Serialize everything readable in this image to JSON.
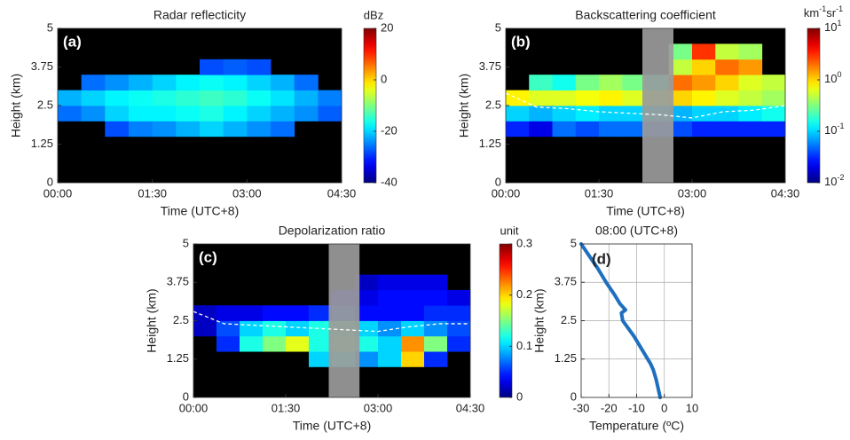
{
  "chart_data": [
    {
      "type": "heatmap",
      "title": "Radar reflecticity",
      "panel_label": "(a)",
      "xlabel": "Time (UTC+8)",
      "ylabel": "Height (km)",
      "xlim": [
        0,
        4.5
      ],
      "xticks": [
        {
          "value": 0,
          "label": "00:00"
        },
        {
          "value": 1.5,
          "label": "01:30"
        },
        {
          "value": 3,
          "label": "03:00"
        },
        {
          "value": 4.5,
          "label": "04:30"
        }
      ],
      "ylim": [
        0,
        5
      ],
      "yticks": [
        0,
        1.25,
        2.5,
        3.75,
        5
      ],
      "x": [
        0,
        0.375,
        0.75,
        1.125,
        1.5,
        1.875,
        2.25,
        2.625,
        3,
        3.375,
        3.75,
        4.125,
        4.5
      ],
      "y": [
        0,
        0.5,
        1,
        1.5,
        2,
        2.5,
        3,
        3.5,
        4,
        4.5,
        5
      ],
      "z": [
        [
          null,
          null,
          null,
          null,
          null,
          null,
          null,
          null,
          null,
          null,
          null,
          null
        ],
        [
          null,
          null,
          null,
          null,
          null,
          null,
          null,
          null,
          null,
          null,
          null,
          null
        ],
        [
          null,
          null,
          null,
          null,
          null,
          null,
          null,
          null,
          null,
          null,
          null,
          null
        ],
        [
          null,
          null,
          -28,
          -25,
          -24,
          -22,
          -20,
          -22,
          -24,
          -26,
          null,
          null
        ],
        [
          -26,
          -24,
          -20,
          -18,
          -18,
          -17,
          -16,
          -18,
          -20,
          -22,
          -24,
          -27
        ],
        [
          -22,
          -20,
          -18,
          -17,
          -16,
          -15,
          -14,
          -15,
          -17,
          -19,
          -22,
          -25
        ],
        [
          null,
          -26,
          -24,
          -22,
          -20,
          -18,
          -17,
          -18,
          -20,
          -22,
          -26,
          null
        ],
        [
          null,
          null,
          null,
          null,
          null,
          null,
          -28,
          -27,
          -28,
          null,
          null,
          null
        ],
        [
          null,
          null,
          null,
          null,
          null,
          null,
          null,
          null,
          null,
          null,
          null,
          null
        ],
        [
          null,
          null,
          null,
          null,
          null,
          null,
          null,
          null,
          null,
          null,
          null,
          null
        ]
      ],
      "colorbar": {
        "label": [
          "dBz"
        ],
        "lim": [
          -40,
          20
        ],
        "ticks": [
          -40,
          -20,
          0,
          20
        ],
        "log": false
      }
    },
    {
      "type": "heatmap",
      "title": "Backscattering coefficient",
      "panel_label": "(b)",
      "xlabel": "Time (UTC+8)",
      "ylabel": "Height (km)",
      "xlim": [
        0,
        4.5
      ],
      "xticks": [
        {
          "value": 0,
          "label": "00:00"
        },
        {
          "value": 1.5,
          "label": "01:30"
        },
        {
          "value": 3,
          "label": "03:00"
        },
        {
          "value": 4.5,
          "label": "04:30"
        }
      ],
      "ylim": [
        0,
        5
      ],
      "yticks": [
        0,
        1.25,
        2.5,
        3.75,
        5
      ],
      "x": [
        0,
        0.375,
        0.75,
        1.125,
        1.5,
        1.875,
        2.25,
        2.625,
        3,
        3.375,
        3.75,
        4.125,
        4.5
      ],
      "y": [
        0,
        0.5,
        1,
        1.5,
        2,
        2.5,
        3,
        3.5,
        4,
        4.5,
        5
      ],
      "z": [
        [
          null,
          null,
          null,
          null,
          null,
          null,
          null,
          null,
          null,
          null,
          null,
          null
        ],
        [
          null,
          null,
          null,
          null,
          null,
          null,
          null,
          null,
          null,
          null,
          null,
          null
        ],
        [
          null,
          null,
          null,
          null,
          null,
          null,
          null,
          null,
          null,
          null,
          null,
          null
        ],
        [
          0.03,
          0.02,
          0.05,
          0.04,
          0.05,
          0.05,
          0.04,
          0.04,
          0.03,
          0.03,
          0.03,
          0.03
        ],
        [
          0.1,
          0.08,
          0.1,
          0.12,
          0.1,
          0.1,
          0.1,
          0.08,
          0.1,
          0.1,
          0.12,
          0.15
        ],
        [
          0.8,
          0.6,
          0.6,
          0.7,
          0.8,
          0.6,
          0.5,
          1,
          0.8,
          0.6,
          0.5,
          0.4
        ],
        [
          null,
          0.2,
          0.15,
          0.3,
          0.4,
          0.3,
          0.2,
          2,
          1.5,
          1,
          0.6,
          0.5
        ],
        [
          null,
          null,
          null,
          null,
          null,
          null,
          null,
          0.5,
          1,
          2,
          1.5,
          null
        ],
        [
          null,
          null,
          null,
          null,
          null,
          null,
          null,
          0.3,
          3,
          0.5,
          0.4,
          null
        ],
        [
          null,
          null,
          null,
          null,
          null,
          null,
          null,
          null,
          null,
          null,
          null,
          null
        ]
      ],
      "shade": [
        2.2,
        2.7
      ],
      "shade_color": "#9b9b9b",
      "dashed_line": {
        "x": [
          0,
          0.5,
          1,
          1.5,
          2,
          2.5,
          3,
          3.5,
          4,
          4.5
        ],
        "y": [
          2.9,
          2.45,
          2.4,
          2.3,
          2.25,
          2.2,
          2.1,
          2.3,
          2.35,
          2.5
        ]
      },
      "colorbar": {
        "label": [
          "km",
          "-1",
          "sr",
          "-1"
        ],
        "lim": [
          0.01,
          10
        ],
        "log": true,
        "ticks": [
          {
            "value": 0.01,
            "label": "10",
            "exp": "-2"
          },
          {
            "value": 0.1,
            "label": "10",
            "exp": "-1"
          },
          {
            "value": 1,
            "label": "10",
            "exp": "0"
          },
          {
            "value": 10,
            "label": "10",
            "exp": "1"
          }
        ]
      }
    },
    {
      "type": "heatmap",
      "title": "Depolarization ratio",
      "panel_label": "(c)",
      "xlabel": "Time (UTC+8)",
      "ylabel": "Height (km)",
      "xlim": [
        0,
        4.5
      ],
      "xticks": [
        {
          "value": 0,
          "label": "00:00"
        },
        {
          "value": 1.5,
          "label": "01:30"
        },
        {
          "value": 3,
          "label": "03:00"
        },
        {
          "value": 4.5,
          "label": "04:30"
        }
      ],
      "ylim": [
        0,
        5
      ],
      "yticks": [
        0,
        1.25,
        2.5,
        3.75,
        5
      ],
      "x": [
        0,
        0.375,
        0.75,
        1.125,
        1.5,
        1.875,
        2.25,
        2.625,
        3,
        3.375,
        3.75,
        4.125,
        4.5
      ],
      "y": [
        0,
        0.5,
        1,
        1.5,
        2,
        2.5,
        3,
        3.5,
        4,
        4.5,
        5
      ],
      "z": [
        [
          null,
          null,
          null,
          null,
          null,
          null,
          null,
          null,
          null,
          null,
          null,
          null
        ],
        [
          null,
          null,
          null,
          null,
          null,
          null,
          null,
          null,
          null,
          null,
          null,
          null
        ],
        [
          null,
          null,
          null,
          null,
          null,
          0.1,
          0.12,
          0.08,
          0.1,
          0.2,
          0.05,
          null
        ],
        [
          null,
          0.05,
          0.12,
          0.15,
          0.18,
          0.12,
          0.15,
          0.12,
          0.1,
          0.22,
          0.15,
          0.05
        ],
        [
          0.02,
          0.06,
          0.1,
          0.12,
          0.1,
          0.12,
          0.14,
          0.1,
          0.08,
          0.1,
          0.08,
          0.06
        ],
        [
          0.02,
          0.03,
          0.03,
          0.04,
          0.04,
          0.05,
          0.06,
          0.04,
          0.04,
          0.04,
          0.05,
          0.05
        ],
        [
          null,
          null,
          null,
          null,
          null,
          null,
          0.03,
          0.03,
          0.04,
          0.04,
          0.04,
          0.03
        ],
        [
          null,
          null,
          null,
          null,
          null,
          null,
          null,
          0.02,
          0.03,
          0.03,
          0.03,
          null
        ],
        [
          null,
          null,
          null,
          null,
          null,
          null,
          null,
          null,
          null,
          null,
          null,
          null
        ],
        [
          null,
          null,
          null,
          null,
          null,
          null,
          null,
          null,
          null,
          null,
          null,
          null
        ]
      ],
      "shade": [
        2.2,
        2.7
      ],
      "shade_color": "#9b9b9b",
      "dashed_line": {
        "x": [
          0,
          0.5,
          1,
          1.5,
          2,
          2.5,
          3,
          3.5,
          4,
          4.5
        ],
        "y": [
          2.8,
          2.4,
          2.35,
          2.3,
          2.25,
          2.2,
          2.15,
          2.3,
          2.4,
          2.4
        ]
      },
      "colorbar": {
        "label": [
          "unit"
        ],
        "lim": [
          0,
          0.3
        ],
        "ticks": [
          0,
          0.1,
          0.2,
          0.3
        ],
        "log": false
      }
    },
    {
      "type": "line",
      "title": "08:00 (UTC+8)",
      "panel_label": "(d)",
      "xlabel": "Temperature (ºC)",
      "ylabel": "Height (km)",
      "xlim": [
        -30,
        10
      ],
      "xticks": [
        -30,
        -20,
        -10,
        0,
        10
      ],
      "ylim": [
        0,
        5
      ],
      "yticks": [
        0,
        1.25,
        2.5,
        3.75,
        5
      ],
      "grid": true,
      "color": "#1f6fbf",
      "x": [
        -30,
        -27,
        -24,
        -21,
        -18,
        -16,
        -14,
        -15.5,
        -15,
        -13,
        -11,
        -9,
        -7,
        -5,
        -4,
        -3,
        -2.5,
        -2,
        -1.5
      ],
      "y": [
        5,
        4.6,
        4.2,
        3.75,
        3.35,
        3.05,
        2.85,
        2.75,
        2.5,
        2.25,
        2,
        1.7,
        1.4,
        1.1,
        0.9,
        0.6,
        0.4,
        0.2,
        0
      ]
    }
  ]
}
